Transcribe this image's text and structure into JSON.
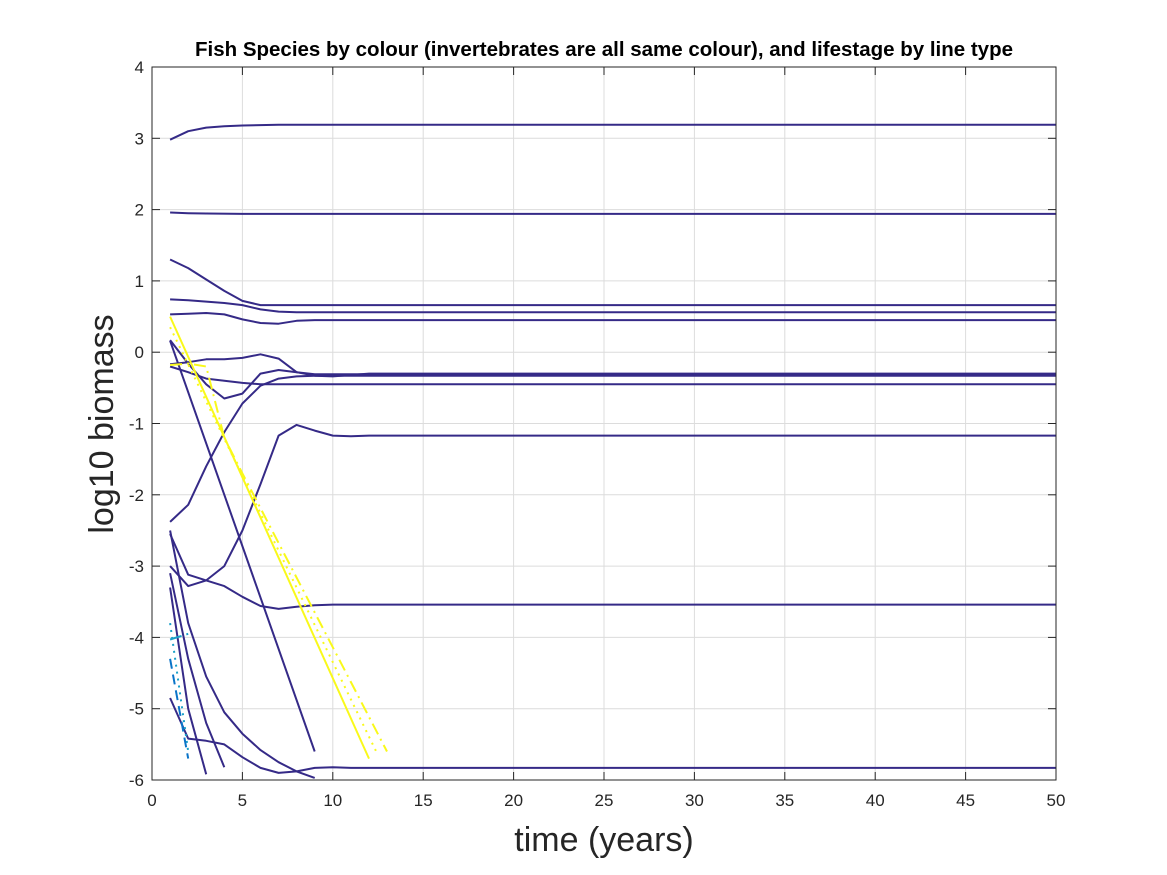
{
  "chart_data": {
    "type": "line",
    "title": "Fish Species by colour (invertebrates are all same colour), and lifestage by line type",
    "xlabel": "time (years)",
    "ylabel": "log10 biomass",
    "xlim": [
      0,
      50
    ],
    "ylim": [
      -6,
      4
    ],
    "grid": true,
    "legend": null,
    "x_ticks": [
      0,
      5,
      10,
      15,
      20,
      25,
      30,
      35,
      40,
      45,
      50
    ],
    "x_tick_labels": [
      "0",
      "5",
      "10",
      "15",
      "20",
      "25",
      "30",
      "35",
      "40",
      "45",
      "50"
    ],
    "y_ticks": [
      4,
      3,
      2,
      1,
      0,
      -1,
      -2,
      -3,
      -4,
      -5,
      -6
    ],
    "y_tick_labels": [
      "4",
      "3",
      "2",
      "1",
      "0",
      "-1",
      "-2",
      "-3",
      "-4",
      "-5",
      "-6"
    ],
    "colors": {
      "invertebrate": "#352a87",
      "fish_yellow": "#f9f91a",
      "fish_cyan": "#1aa0c8",
      "fish_blue": "#0a74c8"
    },
    "series": [
      {
        "group": "invertebrate",
        "style": "solid",
        "x": [
          1,
          2,
          3,
          4,
          5,
          7,
          10,
          20,
          50
        ],
        "y": [
          2.98,
          3.1,
          3.15,
          3.17,
          3.18,
          3.19,
          3.19,
          3.19,
          3.19
        ]
      },
      {
        "group": "invertebrate",
        "style": "solid",
        "x": [
          1,
          2,
          3,
          5,
          10,
          20,
          50
        ],
        "y": [
          1.96,
          1.95,
          1.945,
          1.94,
          1.94,
          1.94,
          1.94
        ]
      },
      {
        "group": "invertebrate",
        "style": "solid",
        "x": [
          1,
          2,
          3,
          4,
          5,
          6,
          7,
          8,
          10,
          20,
          50
        ],
        "y": [
          1.3,
          1.18,
          1.02,
          0.86,
          0.72,
          0.66,
          0.66,
          0.66,
          0.66,
          0.66,
          0.66
        ]
      },
      {
        "group": "invertebrate",
        "style": "solid",
        "x": [
          1,
          2,
          3,
          4,
          5,
          6,
          7,
          8,
          9,
          10,
          12,
          20,
          50
        ],
        "y": [
          0.74,
          0.73,
          0.71,
          0.69,
          0.66,
          0.6,
          0.57,
          0.56,
          0.56,
          0.56,
          0.56,
          0.56,
          0.56
        ]
      },
      {
        "group": "invertebrate",
        "style": "solid",
        "x": [
          1,
          2,
          3,
          4,
          5,
          6,
          7,
          8,
          9,
          10,
          12,
          20,
          50
        ],
        "y": [
          0.53,
          0.54,
          0.55,
          0.53,
          0.46,
          0.41,
          0.4,
          0.44,
          0.45,
          0.45,
          0.45,
          0.45,
          0.45
        ]
      },
      {
        "group": "invertebrate",
        "style": "solid",
        "x": [
          1,
          2,
          3,
          4,
          5,
          6,
          7,
          8,
          9,
          10,
          11,
          15,
          50
        ],
        "y": [
          0.17,
          -0.16,
          -0.45,
          -0.65,
          -0.58,
          -0.3,
          -0.25,
          -0.28,
          -0.31,
          -0.31,
          -0.31,
          -0.31,
          -0.31
        ]
      },
      {
        "group": "invertebrate",
        "style": "solid",
        "x": [
          1,
          2,
          3,
          4,
          5,
          6,
          7,
          8,
          9,
          10,
          11,
          12,
          20,
          50
        ],
        "y": [
          -0.17,
          -0.14,
          -0.1,
          -0.1,
          -0.08,
          -0.03,
          -0.09,
          -0.28,
          -0.33,
          -0.34,
          -0.32,
          -0.3,
          -0.3,
          -0.3
        ]
      },
      {
        "group": "invertebrate",
        "style": "solid",
        "x": [
          1,
          2,
          3,
          4,
          5,
          6,
          7,
          10,
          20,
          50
        ],
        "y": [
          -0.2,
          -0.28,
          -0.37,
          -0.4,
          -0.43,
          -0.45,
          -0.45,
          -0.45,
          -0.45,
          -0.45
        ]
      },
      {
        "group": "invertebrate",
        "style": "solid",
        "x": [
          1,
          2,
          3,
          4,
          5,
          6,
          7,
          8,
          9,
          10,
          11,
          12,
          14,
          20,
          50
        ],
        "y": [
          -2.38,
          -2.14,
          -1.6,
          -1.12,
          -0.72,
          -0.47,
          -0.37,
          -0.34,
          -0.33,
          -0.33,
          -0.33,
          -0.33,
          -0.33,
          -0.33,
          -0.33
        ]
      },
      {
        "group": "invertebrate",
        "style": "solid",
        "x": [
          1,
          2,
          3,
          4,
          5,
          6,
          7,
          8,
          9,
          10,
          11,
          12,
          14,
          20,
          50
        ],
        "y": [
          -2.55,
          -3.12,
          -3.2,
          -3.0,
          -2.5,
          -1.85,
          -1.17,
          -1.02,
          -1.1,
          -1.17,
          -1.18,
          -1.17,
          -1.17,
          -1.17,
          -1.17
        ]
      },
      {
        "group": "invertebrate",
        "style": "solid",
        "x": [
          1,
          2,
          3,
          4,
          5,
          6,
          7,
          8,
          9,
          10,
          12,
          20,
          50
        ],
        "y": [
          -3.0,
          -3.28,
          -3.2,
          -3.28,
          -3.43,
          -3.56,
          -3.6,
          -3.57,
          -3.55,
          -3.54,
          -3.54,
          -3.54,
          -3.54
        ]
      },
      {
        "group": "invertebrate",
        "style": "solid",
        "x": [
          1,
          9
        ],
        "y": [
          0.16,
          -5.6
        ]
      },
      {
        "group": "invertebrate",
        "style": "solid",
        "x": [
          1,
          2,
          3,
          4,
          5,
          6,
          7,
          8,
          9
        ],
        "y": [
          -2.5,
          -3.8,
          -4.55,
          -5.05,
          -5.35,
          -5.58,
          -5.75,
          -5.88,
          -5.97
        ]
      },
      {
        "group": "invertebrate",
        "style": "solid",
        "x": [
          1,
          2,
          3,
          4
        ],
        "y": [
          -3.1,
          -4.3,
          -5.2,
          -5.82
        ]
      },
      {
        "group": "invertebrate",
        "style": "solid",
        "x": [
          1,
          2,
          3
        ],
        "y": [
          -3.3,
          -5.0,
          -5.92
        ]
      },
      {
        "group": "invertebrate",
        "style": "solid",
        "x": [
          1,
          2,
          3,
          4,
          5,
          6,
          7,
          8,
          9,
          10,
          11,
          15,
          20,
          50
        ],
        "y": [
          -4.85,
          -5.42,
          -5.45,
          -5.5,
          -5.68,
          -5.83,
          -5.9,
          -5.88,
          -5.83,
          -5.82,
          -5.83,
          -5.83,
          -5.83,
          -5.83
        ]
      },
      {
        "group": "fish_yellow",
        "style": "solid",
        "x": [
          1,
          12
        ],
        "y": [
          0.5,
          -5.7
        ]
      },
      {
        "group": "fish_yellow",
        "style": "dashdot",
        "x": [
          1,
          2,
          3,
          4,
          5,
          13
        ],
        "y": [
          -0.18,
          -0.16,
          -0.2,
          -1.2,
          -1.7,
          -5.6
        ]
      },
      {
        "group": "fish_yellow",
        "style": "dotted",
        "x": [
          1,
          12.4
        ],
        "y": [
          0.35,
          -5.6
        ]
      },
      {
        "group": "fish_cyan",
        "style": "dotted",
        "x": [
          1,
          2
        ],
        "y": [
          -3.8,
          -5.6
        ]
      },
      {
        "group": "fish_cyan",
        "style": "dashdot",
        "x": [
          1,
          2
        ],
        "y": [
          -4.03,
          -3.95
        ]
      },
      {
        "group": "fish_blue",
        "style": "dashed",
        "x": [
          1,
          2
        ],
        "y": [
          -4.3,
          -5.7
        ]
      }
    ]
  }
}
